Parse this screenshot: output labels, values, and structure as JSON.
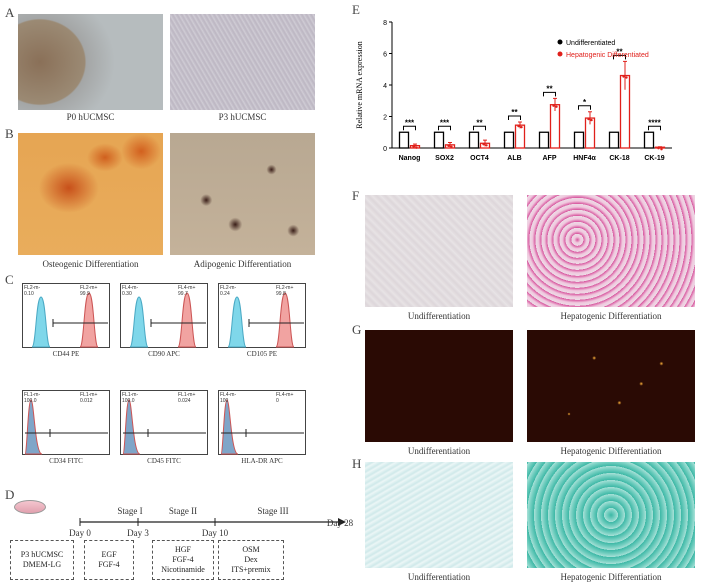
{
  "panels": {
    "A": "A",
    "B": "B",
    "C": "C",
    "D": "D",
    "E": "E",
    "F": "F",
    "G": "G",
    "H": "H"
  },
  "captions": {
    "a_left": "P0 hUCMSC",
    "a_right": "P3 hUCMSC",
    "b_left": "Osteogenic Differentiation",
    "b_right": "Adipogenic Differentiation",
    "f_left": "Undifferentiation",
    "f_right": "Hepatogenic Differentiation",
    "g_left": "Undifferentiation",
    "g_right": "Hepatogenic Differentiation",
    "h_left": "Undifferentiation",
    "h_right": "Hepatogenic Differentiation"
  },
  "flow": [
    {
      "label": "CD44 PE",
      "stats": [
        "FL2-m-",
        "0.10",
        "FL2-m+",
        "99.9"
      ],
      "pos": true
    },
    {
      "label": "CD90 APC",
      "stats": [
        "FL4-m-",
        "0.30",
        "FL4-m+",
        "99.7"
      ],
      "pos": true
    },
    {
      "label": "CD105 PE",
      "stats": [
        "FL2-m-",
        "0.24",
        "FL2-m+",
        "99.8"
      ],
      "pos": true
    },
    {
      "label": "CD34 FITC",
      "stats": [
        "FL1-m-",
        "100.0",
        "FL1-m+",
        "0.012"
      ],
      "pos": false
    },
    {
      "label": "CD45 FITC",
      "stats": [
        "FL1-m-",
        "100.0",
        "FL1-m+",
        "0.024"
      ],
      "pos": false
    },
    {
      "label": "HLA-DR APC",
      "stats": [
        "FL4-m-",
        "100",
        "FL4-m+",
        "0"
      ],
      "pos": false
    }
  ],
  "timeline": {
    "stages": [
      "Stage I",
      "Stage II",
      "Stage III"
    ],
    "days": [
      "Day 0",
      "Day 3",
      "Day 10",
      "Day 28"
    ],
    "boxes": [
      [
        "P3 hUCMSC",
        "DMEM-LG"
      ],
      [
        "EGF",
        "FGF-4"
      ],
      [
        "HGF",
        "FGF-4",
        "Nicotinamide"
      ],
      [
        "OSM",
        "Dex",
        "ITS+premix"
      ]
    ]
  },
  "chart_data": {
    "type": "bar",
    "ylabel": "Relative mRNA expression",
    "ylim": [
      0,
      8
    ],
    "yticks": [
      0,
      2,
      4,
      6,
      8
    ],
    "categories": [
      "Nanog",
      "SOX2",
      "OCT4",
      "ALB",
      "AFP",
      "HNF4α",
      "CK-18",
      "CK-19"
    ],
    "series": [
      {
        "name": "Undifferentiated",
        "color": "#000000",
        "values": [
          1,
          1,
          1,
          1,
          1,
          1,
          1,
          1
        ],
        "err": [
          0,
          0,
          0,
          0,
          0,
          0,
          0,
          0
        ]
      },
      {
        "name": "Hepatogenic Differentiated",
        "color": "#e0201b",
        "values": [
          0.15,
          0.2,
          0.3,
          1.45,
          2.75,
          1.9,
          4.6,
          0.05
        ],
        "err": [
          0.1,
          0.15,
          0.2,
          0.2,
          0.4,
          0.4,
          0.9,
          0.03
        ]
      }
    ],
    "significance": [
      "***",
      "***",
      "**",
      "**",
      "**",
      "*",
      "**",
      "****"
    ]
  }
}
